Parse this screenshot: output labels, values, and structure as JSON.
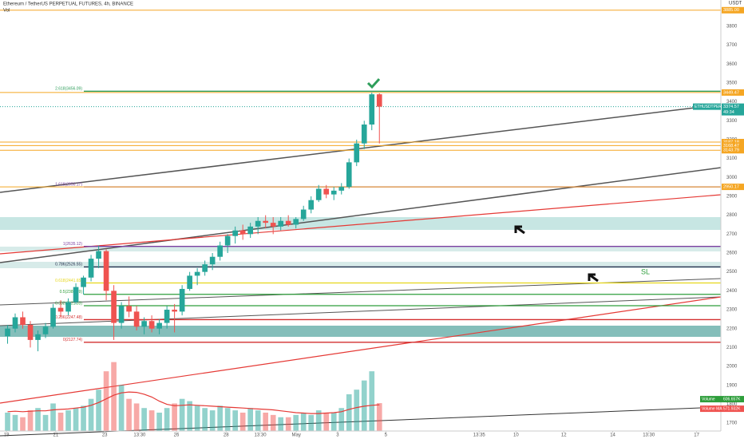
{
  "chart_data": {
    "type": "candlestick",
    "title": "Ethereum / TetherUS PERPETUAL FUTURES, 4h, BINANCE",
    "indicator": "Vol",
    "currency": "USDT",
    "up_color": "#26a69a",
    "down_color": "#ef5350",
    "x": [
      2,
      4,
      6,
      8,
      10,
      12,
      14,
      16,
      18,
      20,
      22,
      24,
      26,
      28,
      30,
      32,
      34,
      36,
      38,
      40,
      42,
      44,
      46,
      48,
      50,
      52,
      54,
      56,
      58,
      60,
      62,
      64,
      66,
      68,
      70,
      72,
      74,
      76,
      78,
      80,
      82,
      84,
      86,
      88,
      90,
      92,
      94,
      96,
      98,
      100
    ],
    "open": [
      2160,
      2200,
      2260,
      2220,
      2140,
      2170,
      2210,
      2310,
      2290,
      2340,
      2420,
      2470,
      2570,
      2610,
      2400,
      2230,
      2320,
      2290,
      2210,
      2240,
      2200,
      2230,
      2300,
      2290,
      2410,
      2480,
      2500,
      2540,
      2580,
      2640,
      2690,
      2720,
      2700,
      2740,
      2770,
      2760,
      2740,
      2770,
      2750,
      2780,
      2830,
      2880,
      2940,
      2910,
      2930,
      2950,
      3080,
      3180,
      3280,
      3440
    ],
    "high": [
      2220,
      2280,
      2290,
      2240,
      2190,
      2230,
      2330,
      2350,
      2360,
      2440,
      2480,
      2590,
      2640,
      2620,
      2430,
      2340,
      2370,
      2320,
      2260,
      2270,
      2250,
      2320,
      2330,
      2430,
      2500,
      2520,
      2560,
      2600,
      2660,
      2700,
      2740,
      2750,
      2760,
      2790,
      2800,
      2790,
      2790,
      2800,
      2790,
      2850,
      2900,
      2960,
      2960,
      2950,
      2970,
      3100,
      3200,
      3300,
      3450,
      3445
    ],
    "low": [
      2120,
      2180,
      2200,
      2100,
      2080,
      2150,
      2200,
      2260,
      2270,
      2330,
      2380,
      2450,
      2520,
      2350,
      2140,
      2200,
      2260,
      2190,
      2170,
      2180,
      2170,
      2200,
      2180,
      2270,
      2400,
      2430,
      2480,
      2510,
      2560,
      2600,
      2650,
      2670,
      2680,
      2700,
      2730,
      2700,
      2720,
      2740,
      2730,
      2770,
      2810,
      2870,
      2890,
      2880,
      2910,
      2940,
      3060,
      3150,
      3250,
      3180
    ],
    "close": [
      2200,
      2260,
      2220,
      2140,
      2170,
      2210,
      2310,
      2290,
      2340,
      2420,
      2470,
      2570,
      2610,
      2400,
      2230,
      2320,
      2290,
      2210,
      2240,
      2200,
      2230,
      2300,
      2290,
      2410,
      2480,
      2500,
      2540,
      2580,
      2640,
      2690,
      2720,
      2700,
      2740,
      2770,
      2760,
      2740,
      2770,
      2750,
      2780,
      2830,
      2880,
      2940,
      2910,
      2930,
      2950,
      3080,
      3180,
      3280,
      3440,
      3374.57
    ],
    "volume": [
      400,
      350,
      300,
      450,
      500,
      350,
      600,
      400,
      450,
      500,
      550,
      700,
      900,
      1300,
      1500,
      1000,
      700,
      600,
      500,
      450,
      400,
      500,
      600,
      700,
      650,
      550,
      500,
      450,
      550,
      500,
      450,
      400,
      500,
      450,
      400,
      350,
      300,
      300,
      350,
      400,
      350,
      450,
      400,
      400,
      500,
      800,
      900,
      1100,
      1300,
      606.657
    ],
    "volume_ma": [
      420,
      430,
      420,
      430,
      440,
      440,
      460,
      470,
      480,
      500,
      520,
      560,
      620,
      700,
      780,
      830,
      850,
      840,
      800,
      740,
      650,
      580,
      550,
      560,
      570,
      560,
      550,
      540,
      530,
      520,
      510,
      500,
      490,
      480,
      470,
      460,
      440,
      420,
      400,
      390,
      380,
      380,
      390,
      400,
      420,
      470,
      510,
      540,
      560,
      571.932
    ],
    "volume_lim": [
      0,
      1650
    ],
    "volume_legend": [
      {
        "name": "Volume",
        "value": 606.657,
        "label": "606.657K"
      },
      {
        "name": "Volume MA",
        "value": 571.932,
        "label": "571.932K"
      }
    ],
    "xlim": [
      0,
      190
    ],
    "ylim": [
      1658,
      3939
    ],
    "yticks": [
      1700,
      1800,
      1900,
      2000,
      2100,
      2200,
      2300,
      2400,
      2500,
      2600,
      2700,
      2800,
      2900,
      3000,
      3100,
      3200,
      3300,
      3400,
      3500,
      3600,
      3700,
      3800
    ],
    "xticks": [
      {
        "value": 1.7,
        "label": "19"
      },
      {
        "value": 14.7,
        "label": "21"
      },
      {
        "value": 27.6,
        "label": "23"
      },
      {
        "value": 36.8,
        "label": "13:30"
      },
      {
        "value": 46.5,
        "label": "26"
      },
      {
        "value": 59.6,
        "label": "28"
      },
      {
        "value": 68.6,
        "label": "13:30"
      },
      {
        "value": 78.1,
        "label": "May"
      },
      {
        "value": 89,
        "label": "3"
      },
      {
        "value": 101.7,
        "label": "5"
      },
      {
        "value": 126.3,
        "label": "13:35"
      },
      {
        "value": 136,
        "label": "10"
      },
      {
        "value": 148.6,
        "label": "12"
      },
      {
        "value": 161.5,
        "label": "14"
      },
      {
        "value": 171,
        "label": "13:30"
      },
      {
        "value": 183.6,
        "label": "17"
      }
    ],
    "levels": [
      {
        "value": 3885,
        "label": "3885.00",
        "color": "#f5a623"
      },
      {
        "value": 3449.47,
        "label": "3449.47",
        "color": "#f5a623"
      },
      {
        "value": 3187.18,
        "label": "3187.18",
        "color": "#f5a623"
      },
      {
        "value": 3168.47,
        "label": "3168.47",
        "color": "#f5a623"
      },
      {
        "value": 3143.79,
        "label": "3143.79",
        "color": "#f5a623"
      },
      {
        "value": 2950.17,
        "label": "2950.17",
        "color": "#f5a623"
      }
    ],
    "current": {
      "value": 3374.57,
      "symbol": "ETHUSDTPERP",
      "countdown": "49:34"
    },
    "fibs": [
      {
        "value": 3456.09,
        "label": "2.618(3456.09)",
        "color": "#2e9e5b"
      },
      {
        "value": 2950.17,
        "label": "1.618(2950.17)",
        "color": "#7b3fa0"
      },
      {
        "value": 2635.12,
        "label": "1(2635.12)",
        "color": "#7b3fa0"
      },
      {
        "value": 2526.55,
        "label": "0.786(2526.55)",
        "color": "#222a4a"
      },
      {
        "value": 2441.65,
        "label": "0.618(2441.65)",
        "color": "#e6d619"
      },
      {
        "value": 2381.49,
        "label": "0.5(2381.49)",
        "color": "#2e9e3b"
      },
      {
        "value": 2321.33,
        "label": "0.382(2321.33)",
        "color": "#2e9e3b"
      },
      {
        "value": 2247.48,
        "label": "0.236(2247.48)",
        "color": "#d32f2f"
      },
      {
        "value": 2127.74,
        "label": "0(2127.74)",
        "color": "#d32f2f"
      }
    ],
    "annotation": "SL"
  }
}
